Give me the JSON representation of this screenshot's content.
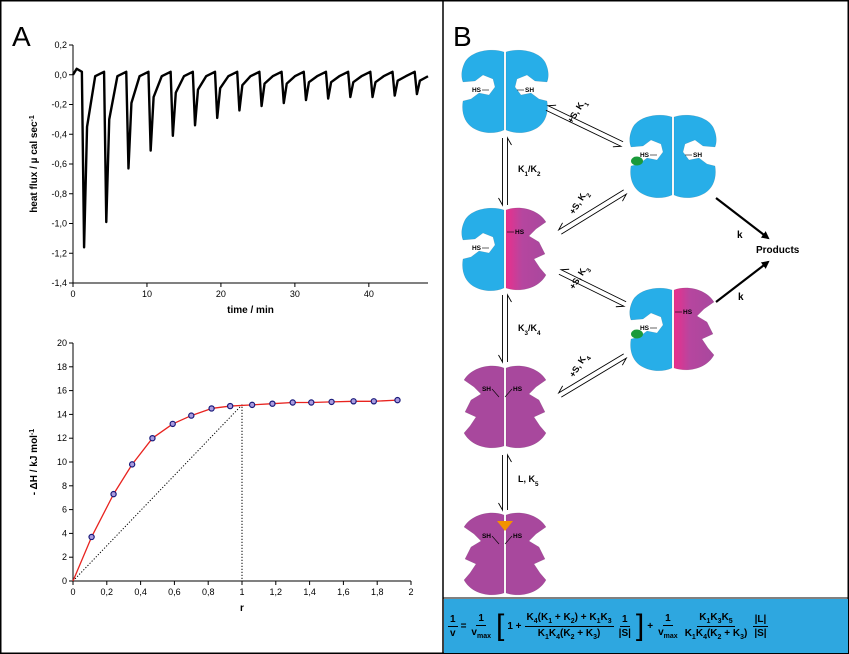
{
  "panel_labels": [
    "A",
    "B"
  ],
  "chart_data": [
    {
      "type": "line",
      "x_label": "time / min",
      "y_label": "heat flux / µ cal sec",
      "y_label_sup": "-1",
      "xlim": [
        0,
        48
      ],
      "ylim": [
        -1.4,
        0.2
      ],
      "xticks": [
        0,
        10,
        20,
        30,
        40
      ],
      "yticks": [
        {
          "value": 0.2,
          "label": "0,2"
        },
        {
          "value": 0.0,
          "label": "0,0"
        },
        {
          "value": -0.2,
          "label": "-0,2"
        },
        {
          "value": -0.4,
          "label": "-0,4"
        },
        {
          "value": -0.6,
          "label": "-0,6"
        },
        {
          "value": -0.8,
          "label": "-0,8"
        },
        {
          "value": -1.0,
          "label": "-1,0"
        },
        {
          "value": -1.2,
          "label": "-1,2"
        },
        {
          "value": -1.4,
          "label": "-1,4"
        }
      ],
      "series": [
        {
          "color": "#000000",
          "style": "line",
          "x": [
            0,
            0.5,
            1.2,
            1.5,
            1.9,
            3.0,
            4.2,
            4.5,
            4.9,
            6.0,
            7.2,
            7.5,
            7.9,
            9.0,
            10.2,
            10.5,
            10.9,
            12.0,
            13.2,
            13.5,
            13.9,
            15.0,
            16.2,
            16.5,
            16.9,
            18.0,
            19.2,
            19.5,
            19.9,
            21.0,
            22.2,
            22.5,
            22.9,
            24.0,
            25.2,
            25.5,
            25.9,
            27.0,
            28.2,
            28.5,
            28.9,
            30.0,
            31.2,
            31.5,
            31.9,
            33.0,
            34.2,
            34.5,
            34.9,
            36.0,
            37.2,
            37.5,
            37.9,
            39.0,
            40.2,
            40.5,
            40.9,
            42.0,
            43.2,
            43.5,
            43.9,
            45.0,
            46.2,
            46.5,
            46.9,
            48.0
          ],
          "values": [
            0.0,
            0.04,
            0.02,
            -1.16,
            -0.35,
            -0.01,
            0.02,
            -0.99,
            -0.3,
            -0.01,
            0.02,
            -0.63,
            -0.19,
            -0.01,
            0.02,
            -0.51,
            -0.15,
            -0.01,
            0.02,
            -0.41,
            -0.12,
            -0.01,
            0.02,
            -0.34,
            -0.1,
            -0.01,
            0.02,
            -0.29,
            -0.09,
            -0.01,
            0.02,
            -0.24,
            -0.07,
            -0.01,
            0.02,
            -0.21,
            -0.06,
            -0.01,
            0.02,
            -0.19,
            -0.06,
            -0.01,
            0.02,
            -0.17,
            -0.05,
            -0.01,
            0.02,
            -0.16,
            -0.05,
            -0.01,
            0.02,
            -0.15,
            -0.05,
            -0.01,
            0.02,
            -0.15,
            -0.05,
            -0.01,
            0.02,
            -0.14,
            -0.04,
            -0.01,
            0.02,
            -0.13,
            -0.04,
            -0.01
          ]
        }
      ]
    },
    {
      "type": "scatter",
      "x_label": "r",
      "y_label": "- ΔH / kJ mol",
      "y_label_sup": "-1",
      "xlim": [
        0,
        2
      ],
      "ylim": [
        0,
        20
      ],
      "xticks": [
        0,
        {
          "value": 0.2,
          "label": "0,2"
        },
        {
          "value": 0.4,
          "label": "0,4"
        },
        {
          "value": 0.6,
          "label": "0,6"
        },
        {
          "value": 0.8,
          "label": "0,8"
        },
        1,
        {
          "value": 1.2,
          "label": "1,2"
        },
        {
          "value": 1.4,
          "label": "1,4"
        },
        {
          "value": 1.6,
          "label": "1,6"
        },
        {
          "value": 1.8,
          "label": "1,8"
        },
        2
      ],
      "yticks": [
        0,
        2,
        4,
        6,
        8,
        10,
        12,
        14,
        16,
        18,
        20
      ],
      "series": [
        {
          "color": "#000000",
          "style": "dotted",
          "x": [
            0,
            1,
            1
          ],
          "values": [
            0,
            14.8,
            0
          ]
        },
        {
          "color": "#e8231f",
          "style": "line",
          "x": [
            0,
            0.11,
            0.24,
            0.35,
            0.47,
            0.59,
            0.7,
            0.82,
            0.93,
            1.06,
            1.18,
            1.3,
            1.41,
            1.53,
            1.66,
            1.78,
            1.92
          ],
          "values": [
            0,
            3.7,
            7.3,
            9.8,
            12.0,
            13.2,
            13.9,
            14.5,
            14.7,
            14.8,
            14.9,
            15.0,
            15.0,
            15.05,
            15.1,
            15.1,
            15.2
          ]
        },
        {
          "color": "#1a1a7a",
          "style": "markers",
          "x": [
            0.11,
            0.24,
            0.35,
            0.47,
            0.59,
            0.7,
            0.82,
            0.93,
            1.06,
            1.18,
            1.3,
            1.41,
            1.53,
            1.66,
            1.78,
            1.92
          ],
          "values": [
            3.7,
            7.3,
            9.8,
            12.0,
            13.2,
            13.9,
            14.5,
            14.7,
            14.8,
            14.9,
            15.0,
            15.0,
            15.05,
            15.1,
            15.1,
            15.2
          ]
        }
      ]
    }
  ],
  "diagram": {
    "states": [
      {
        "labels": [
          "HS",
          "SH"
        ]
      },
      {
        "labels": [
          "HS",
          "SH"
        ]
      },
      {
        "labels": [
          "HS",
          "HS"
        ]
      },
      {
        "labels": [
          "HS",
          "HS"
        ]
      },
      {
        "labels": [
          "SH",
          "HS"
        ]
      },
      {
        "labels": [
          "SH",
          "HS"
        ]
      }
    ],
    "equilibria": [
      {
        "label": [
          "+S, K",
          "1"
        ]
      },
      {
        "label": [
          "K",
          "1",
          "/K",
          "2"
        ]
      },
      {
        "label": [
          "+S, K",
          "2"
        ]
      },
      {
        "label": [
          "+S, K",
          "3"
        ]
      },
      {
        "label": [
          "K",
          "3",
          "/K",
          "4"
        ]
      },
      {
        "label": [
          "+S, K",
          "4"
        ]
      },
      {
        "label": [
          "L, K",
          "5"
        ]
      }
    ],
    "rates": [
      "k",
      "k"
    ],
    "products": "Products",
    "equation": {
      "lhs_num": "1",
      "lhs_den": "v",
      "eq": "=",
      "t1_num": "1",
      "t1_den": [
        "v",
        "max"
      ],
      "open": "[",
      "one_plus": "1 +",
      "f1_num": [
        "K",
        "4",
        "(K",
        "1",
        " + K",
        "2",
        ") + K",
        "1",
        "K",
        "3"
      ],
      "f1_den": [
        "K",
        "1",
        "K",
        "4",
        "(K",
        "2",
        " + K",
        "3",
        ")"
      ],
      "f2_num": "1",
      "f2_den": "|S|",
      "close": "]",
      "plus": "+",
      "t2_num": "1",
      "t2_den": [
        "v",
        "max"
      ],
      "f3_num": [
        "K",
        "1",
        "K",
        "3",
        "K",
        "5"
      ],
      "f3_den": [
        "K",
        "1",
        "K",
        "4",
        "(K",
        "2",
        " + K",
        "3",
        ")"
      ],
      "f4_num": "|L|",
      "f4_den": "|S|"
    }
  }
}
